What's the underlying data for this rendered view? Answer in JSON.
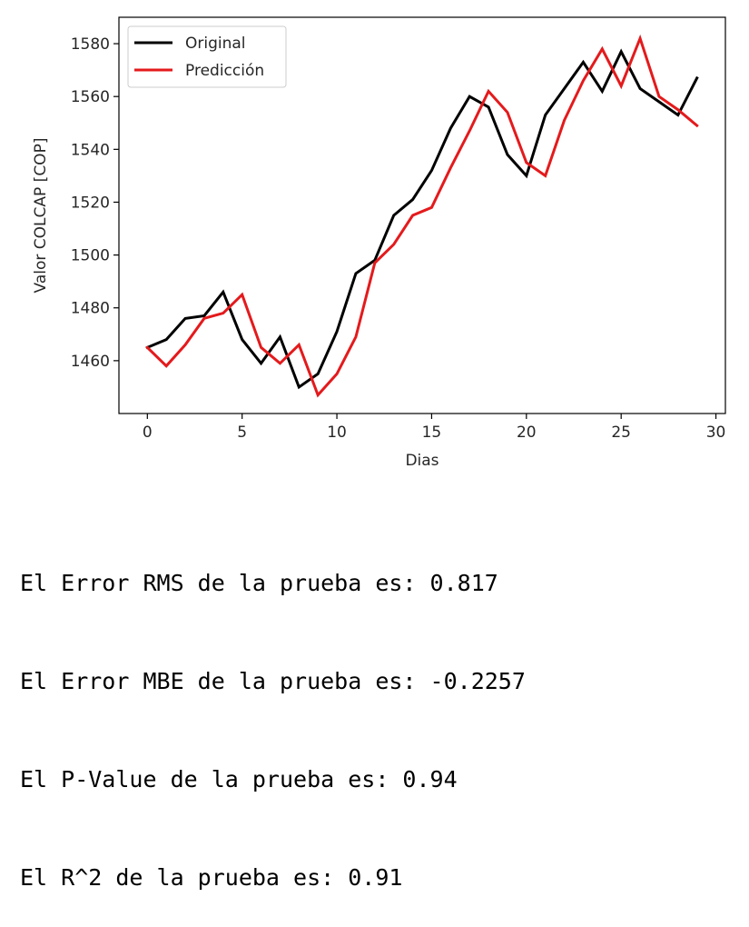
{
  "chart_data": {
    "type": "line",
    "title": "",
    "xlabel": "Dias",
    "ylabel": "Valor COLCAP [COP]",
    "xlim": [
      -1.5,
      30.5
    ],
    "ylim": [
      1440,
      1590
    ],
    "xticks": [
      0,
      5,
      10,
      15,
      20,
      25,
      30
    ],
    "yticks": [
      1460,
      1480,
      1500,
      1520,
      1540,
      1560,
      1580
    ],
    "grid": false,
    "legend_position": "top-left",
    "x": [
      0,
      1,
      2,
      3,
      4,
      5,
      6,
      7,
      8,
      9,
      10,
      11,
      12,
      13,
      14,
      15,
      16,
      17,
      18,
      19,
      20,
      21,
      22,
      23,
      24,
      25,
      26,
      27,
      28,
      29
    ],
    "series": [
      {
        "name": "Original",
        "color": "#000000",
        "values": [
          1465,
          1468,
          1476,
          1477,
          1486,
          1468,
          1459,
          1469,
          1450,
          1455,
          1471,
          1493,
          1498,
          1515,
          1521,
          1532,
          1548,
          1560,
          1556,
          1538,
          1530,
          1553,
          1563,
          1573,
          1562,
          1577,
          1563,
          1558,
          1553,
          1567
        ]
      },
      {
        "name": "Predicción",
        "color": "#e41a1c",
        "values": [
          1465,
          1458,
          1466,
          1476,
          1478,
          1485,
          1465,
          1459,
          1466,
          1447,
          1455,
          1469,
          1497,
          1504,
          1515,
          1518,
          1533,
          1547,
          1562,
          1554,
          1535,
          1530,
          1551,
          1566,
          1578,
          1564,
          1582,
          1560,
          1555,
          1549
        ]
      }
    ]
  },
  "output_lines": [
    "El Error RMS de la prueba es: 0.817",
    "El Error MBE de la prueba es: -0.2257",
    "El P-Value de la prueba es: 0.94",
    "El R^2 de la prueba es: 0.91"
  ]
}
